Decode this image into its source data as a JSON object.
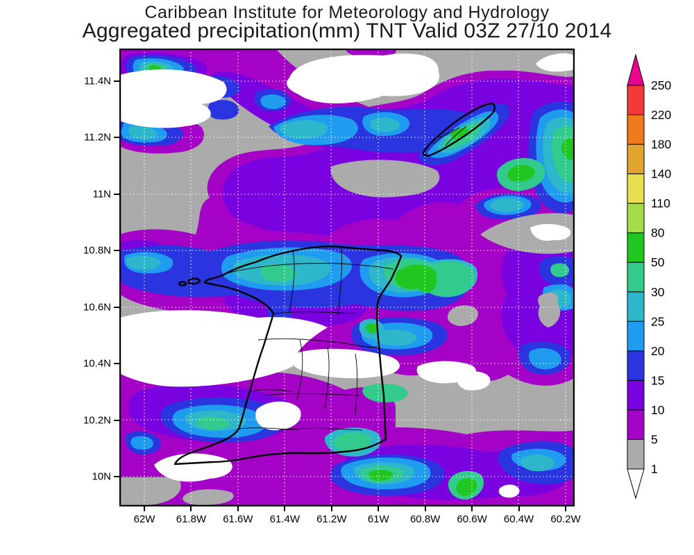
{
  "title": {
    "line1": "Caribbean Institute for Meteorology and Hydrology",
    "line2": "Aggregated precipitation(mm) TNT Valid 03Z 27/10 2014"
  },
  "axes": {
    "lat_ticks": [
      "11.4N",
      "11.2N",
      "11N",
      "10.8N",
      "10.6N",
      "10.4N",
      "10.2N",
      "10N"
    ],
    "lon_ticks": [
      "62W",
      "61.8W",
      "61.6W",
      "61.4W",
      "61.2W",
      "61W",
      "60.8W",
      "60.6W",
      "60.4W",
      "60.2W"
    ]
  },
  "colorbar": {
    "unit": "mm",
    "labels": [
      "250",
      "220",
      "180",
      "140",
      "110",
      "80",
      "50",
      "30",
      "25",
      "20",
      "15",
      "10",
      "5",
      "1"
    ],
    "segments": [
      {
        "range": "220-250",
        "color": "#F23A3A"
      },
      {
        "range": "180-220",
        "color": "#F0791C"
      },
      {
        "range": "140-180",
        "color": "#E2A42E"
      },
      {
        "range": "110-140",
        "color": "#E9DE4D"
      },
      {
        "range": "80-110",
        "color": "#A6DC4B"
      },
      {
        "range": "50-80",
        "color": "#21C621"
      },
      {
        "range": "30-50",
        "color": "#33CB8D"
      },
      {
        "range": "25-30",
        "color": "#2EB6CB"
      },
      {
        "range": "20-25",
        "color": "#1F9CEF"
      },
      {
        "range": "15-20",
        "color": "#2A35E0"
      },
      {
        "range": "10-15",
        "color": "#7A02E0"
      },
      {
        "range": "5-10",
        "color": "#A502C8"
      },
      {
        "range": "1-5",
        "color": "#ABABAB"
      }
    ],
    "over_arrow_color": "#E9068F",
    "under_arrow_color": "#FFFFFF"
  },
  "palette": {
    "gray": "#ABABAB",
    "white": "#FFFFFF",
    "p5": "#A502C8",
    "p10": "#7A02E0",
    "p15": "#2A35E0",
    "p20": "#1F9CEF",
    "p25": "#2EB6CB",
    "p30": "#33CB8D",
    "p50": "#21C621",
    "grid": "#FFFFFF",
    "coast": "#000000"
  },
  "map": {
    "region": "Trinidad and Tobago",
    "islands": [
      "Trinidad",
      "Tobago"
    ]
  }
}
